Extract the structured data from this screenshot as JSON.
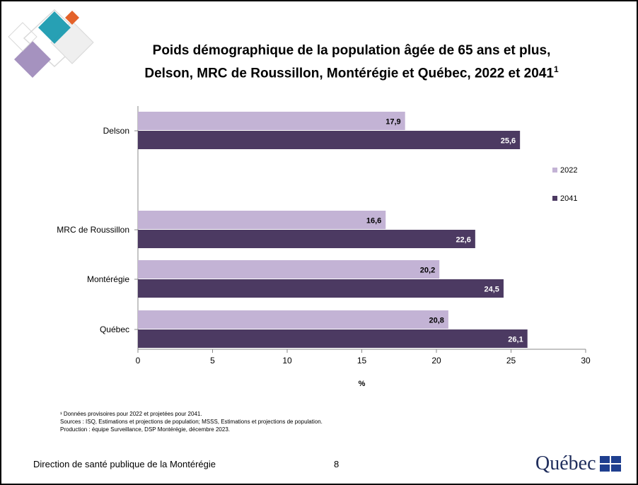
{
  "title_line1": "Poids démographique de la population âgée de 65 ans et plus,",
  "title_line2": "Delson, MRC de Roussillon, Montérégie et Québec, 2022 et 2041",
  "title_sup": "1",
  "chart_data": {
    "type": "bar",
    "orientation": "horizontal",
    "categories": [
      "Delson",
      "MRC de Roussillon",
      "Montérégie",
      "Québec"
    ],
    "series": [
      {
        "name": "2022",
        "values": [
          17.9,
          16.6,
          20.2,
          20.8
        ],
        "color": "#c3b3d5"
      },
      {
        "name": "2041",
        "values": [
          25.6,
          22.6,
          24.5,
          26.1
        ],
        "color": "#4c3a62"
      }
    ],
    "value_labels": {
      "2022": [
        "17,9",
        "16,6",
        "20,2",
        "20,8"
      ],
      "2041": [
        "25,6",
        "22,6",
        "24,5",
        "26,1"
      ]
    },
    "xlabel": "%",
    "xlim": [
      0,
      30
    ],
    "xticks": [
      0,
      5,
      10,
      15,
      20,
      25,
      30
    ],
    "grid": false,
    "legend": "right"
  },
  "notes": {
    "line1": "¹ Données provisoires pour 2022 et projetées pour 2041.",
    "line2": "Sources : ISQ, Estimations et projections de population; MSSS, Estimations et projections de population.",
    "line3": "Production : équipe Surveillance, DSP Montérégie, décembre 2023."
  },
  "footer": {
    "left": "Direction de santé publique de la Montérégie",
    "page": "8",
    "logo": "Québec"
  }
}
